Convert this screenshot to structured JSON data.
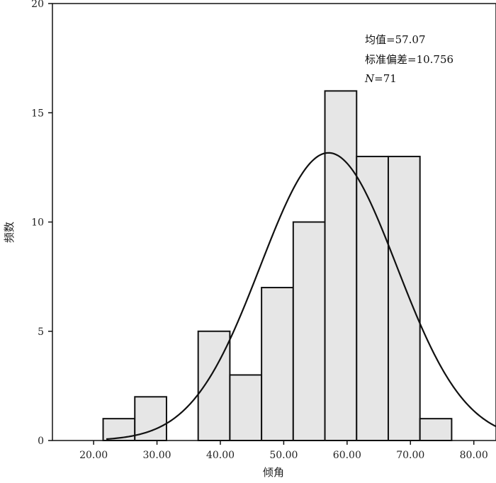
{
  "chart_data": {
    "type": "bar",
    "subtype": "histogram-with-normal-curve",
    "xlabel": "倾角",
    "ylabel": "频数",
    "xlim": [
      13.5,
      83.5
    ],
    "ylim": [
      0,
      20
    ],
    "x_ticks": [
      20,
      30,
      40,
      50,
      60,
      70,
      80
    ],
    "x_tick_labels": [
      "20.00",
      "30.00",
      "40.00",
      "50.00",
      "60.00",
      "70.00",
      "80.00"
    ],
    "y_ticks": [
      0,
      5,
      10,
      15,
      20
    ],
    "y_tick_labels": [
      "0",
      "5",
      "10",
      "15",
      "20"
    ],
    "bins": [
      {
        "x0": 21.5,
        "x1": 26.5,
        "count": 1
      },
      {
        "x0": 26.5,
        "x1": 31.5,
        "count": 2
      },
      {
        "x0": 31.5,
        "x1": 36.5,
        "count": 0
      },
      {
        "x0": 36.5,
        "x1": 41.5,
        "count": 5
      },
      {
        "x0": 41.5,
        "x1": 46.5,
        "count": 3
      },
      {
        "x0": 46.5,
        "x1": 51.5,
        "count": 7
      },
      {
        "x0": 51.5,
        "x1": 56.5,
        "count": 10
      },
      {
        "x0": 56.5,
        "x1": 61.5,
        "count": 16
      },
      {
        "x0": 61.5,
        "x1": 66.5,
        "count": 13
      },
      {
        "x0": 66.5,
        "x1": 71.5,
        "count": 13
      },
      {
        "x0": 71.5,
        "x1": 76.5,
        "count": 1
      }
    ],
    "normal_curve": {
      "mean": 57.07,
      "std": 10.756,
      "n": 71,
      "bin_width": 5
    },
    "stats_text": {
      "mean_line": "均值=57.07",
      "std_line": "标准偏差=10.756",
      "n_symbol": "N",
      "n_value": "=71"
    },
    "bar_fill": "#e6e6e6",
    "stroke": "#111111"
  }
}
